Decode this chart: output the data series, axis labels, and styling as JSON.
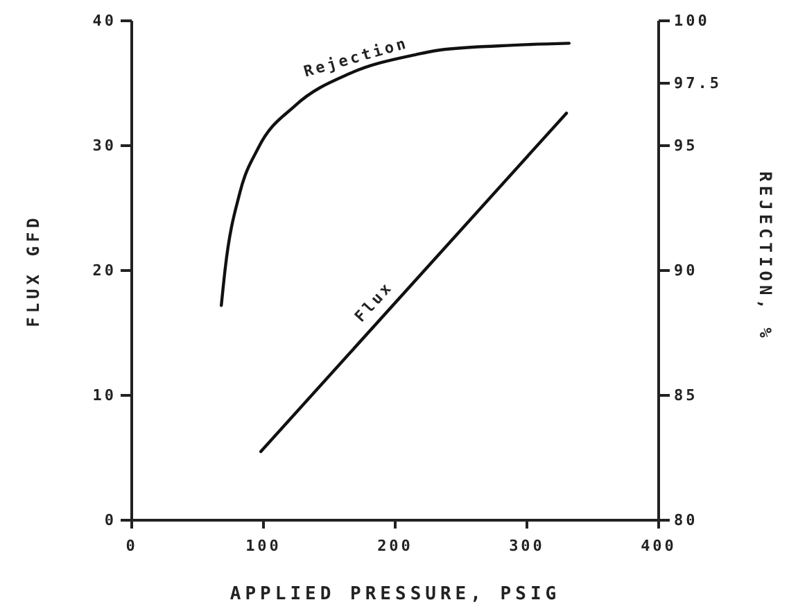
{
  "chart_data": {
    "type": "line",
    "xlabel": "APPLIED PRESSURE, PSIG",
    "ylabel": "FLUX GFD",
    "y2label": "REJECTION, %",
    "xlim": [
      0,
      400
    ],
    "xticks": [
      0,
      100,
      200,
      300,
      400
    ],
    "ylim": [
      0,
      40
    ],
    "yticks": [
      0,
      10,
      20,
      30,
      40
    ],
    "y2lim": [
      80,
      100
    ],
    "y2ticks": [
      80,
      85,
      90,
      95,
      97.5,
      100
    ],
    "marker": "none",
    "line_style": "solid",
    "series": [
      {
        "name": "Rejection",
        "color": "#111111",
        "axis": "y2",
        "x": [
          68,
          71,
          82,
          96,
          124,
          166,
          216,
          230,
          280,
          332
        ],
        "values": [
          88.6,
          90.1,
          93.1,
          94.9,
          96.6,
          97.9,
          98.65,
          98.8,
          99.0,
          99.1
        ]
      },
      {
        "name": "Flux",
        "color": "#111111",
        "axis": "y",
        "x": [
          98,
          330
        ],
        "values": [
          5.5,
          32.6
        ]
      }
    ]
  }
}
